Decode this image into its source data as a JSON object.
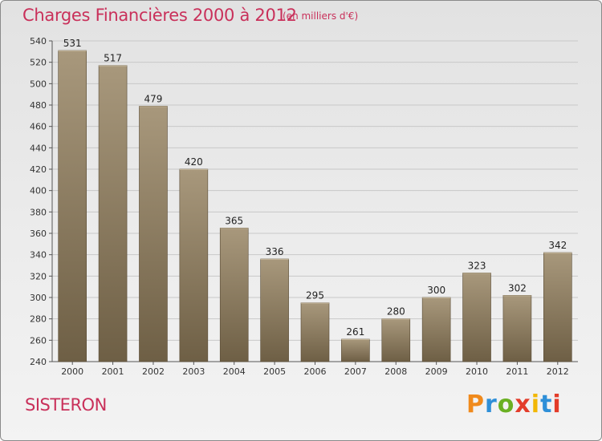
{
  "header": {
    "title": "Charges Financières 2000 à 2012",
    "subtitle": "(en milliers d'€)"
  },
  "footer": {
    "place": "SISTERON",
    "brand": "Proxiti",
    "brand_colors": [
      "#f08a1c",
      "#2e8fd8",
      "#6ab023",
      "#e33c2a",
      "#f2b705",
      "#2e8fd8",
      "#e33c2a"
    ]
  },
  "colors": {
    "accent": "#c9305a",
    "bar_top": "#a8987c",
    "bar_bottom": "#6e5f45",
    "axis": "#555555",
    "grid": "#c8c8c8"
  },
  "chart_data": {
    "type": "bar",
    "categories": [
      "2000",
      "2001",
      "2002",
      "2003",
      "2004",
      "2005",
      "2006",
      "2007",
      "2008",
      "2009",
      "2010",
      "2011",
      "2012"
    ],
    "values": [
      531,
      517,
      479,
      420,
      365,
      336,
      295,
      261,
      280,
      300,
      323,
      302,
      342
    ],
    "ylim": [
      240,
      540
    ],
    "ytick_step": 20,
    "grid": true,
    "data_labels": true
  }
}
